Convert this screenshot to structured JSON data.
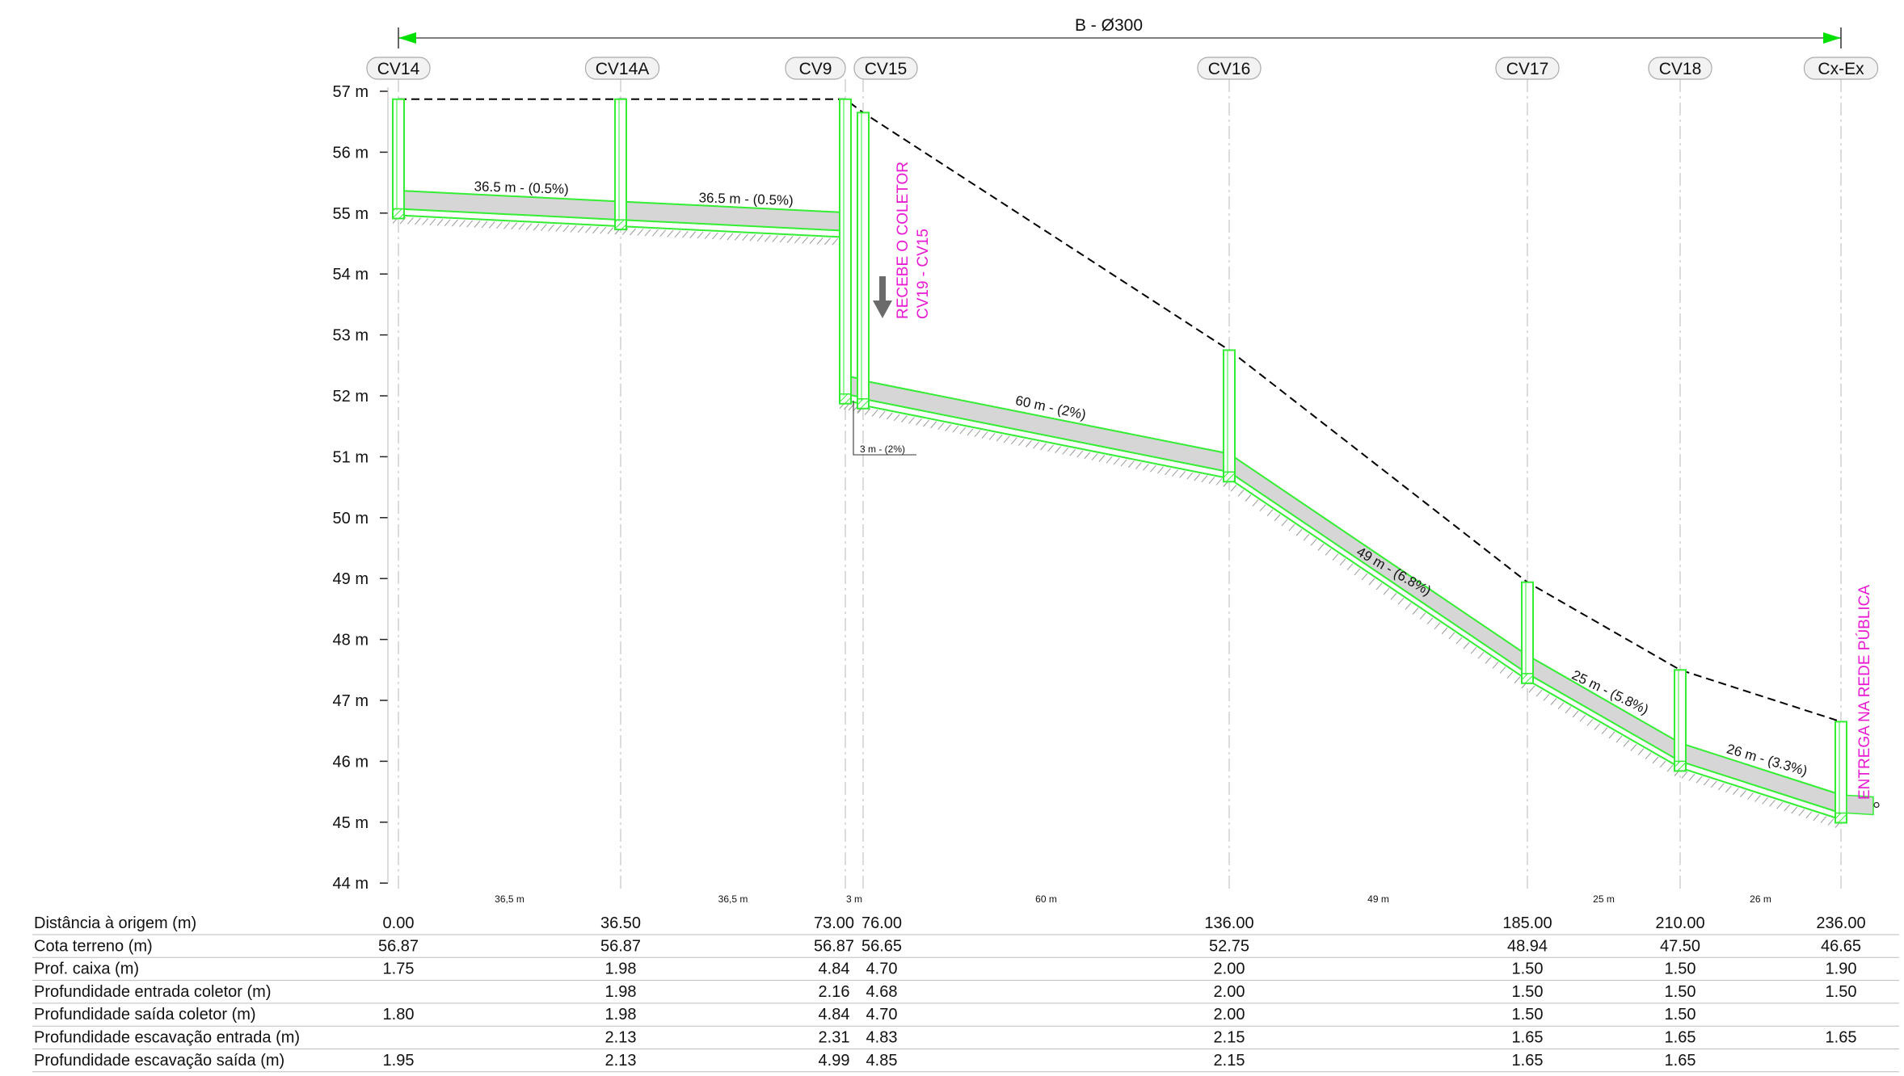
{
  "header": {
    "title": "B - Ø300"
  },
  "colors": {
    "pipe": "#33ee33",
    "fill": "#d6d6d6",
    "terrain": "#000000",
    "annotation": "#e81ad2",
    "dim_arrow": "#00e000"
  },
  "y_axis": {
    "labels": [
      "57 m",
      "56 m",
      "55 m",
      "54 m",
      "53 m",
      "52 m",
      "51 m",
      "50 m",
      "49 m",
      "48 m",
      "47 m",
      "46 m",
      "45 m",
      "44 m"
    ]
  },
  "chart_data": {
    "type": "line",
    "stations": [
      {
        "id": "CV14",
        "label": "CV14",
        "distance": 0,
        "distance_label": "0.00",
        "terrain": 56.87,
        "terrain_label": "56.87",
        "box_depth": "1.75",
        "in_collector": "",
        "out_collector": "1.80",
        "excav_in": "",
        "excav_out": "1.95"
      },
      {
        "id": "CV14A",
        "label": "CV14A",
        "distance": 36.5,
        "distance_label": "36.50",
        "terrain": 56.87,
        "terrain_label": "56.87",
        "box_depth": "1.98",
        "in_collector": "1.98",
        "out_collector": "1.98",
        "excav_in": "2.13",
        "excav_out": "2.13"
      },
      {
        "id": "CV9",
        "label": "CV9",
        "distance": 73,
        "distance_label": "73.00",
        "terrain": 56.87,
        "terrain_label": "56.87",
        "box_depth": "4.84",
        "in_collector": "2.16",
        "out_collector": "4.84",
        "excav_in": "2.31",
        "excav_out": "4.99"
      },
      {
        "id": "CV15",
        "label": "CV15",
        "distance": 76,
        "distance_label": "76.00",
        "terrain": 56.65,
        "terrain_label": "56.65",
        "box_depth": "4.70",
        "in_collector": "4.68",
        "out_collector": "4.70",
        "excav_in": "4.83",
        "excav_out": "4.85"
      },
      {
        "id": "CV16",
        "label": "CV16",
        "distance": 136,
        "distance_label": "136.00",
        "terrain": 52.75,
        "terrain_label": "52.75",
        "box_depth": "2.00",
        "in_collector": "2.00",
        "out_collector": "2.00",
        "excav_in": "2.15",
        "excav_out": "2.15"
      },
      {
        "id": "CV17",
        "label": "CV17",
        "distance": 185,
        "distance_label": "185.00",
        "terrain": 48.94,
        "terrain_label": "48.94",
        "box_depth": "1.50",
        "in_collector": "1.50",
        "out_collector": "1.50",
        "excav_in": "1.65",
        "excav_out": "1.65"
      },
      {
        "id": "CV18",
        "label": "CV18",
        "distance": 210,
        "distance_label": "210.00",
        "terrain": 47.5,
        "terrain_label": "47.50",
        "box_depth": "1.50",
        "in_collector": "1.50",
        "out_collector": "1.50",
        "excav_in": "1.65",
        "excav_out": "1.65"
      },
      {
        "id": "CxEx",
        "label": "Cx-Ex",
        "distance": 236,
        "distance_label": "236.00",
        "terrain": 46.65,
        "terrain_label": "46.65",
        "box_depth": "1.90",
        "in_collector": "1.50",
        "out_collector": "",
        "excav_in": "1.65",
        "excav_out": ""
      }
    ],
    "segments": [
      {
        "from": "CV14",
        "to": "CV14A",
        "label": "36.5 m - (0.5%)",
        "span_label": "36,5 m"
      },
      {
        "from": "CV14A",
        "to": "CV9",
        "label": "36.5 m - (0.5%)",
        "span_label": "36,5 m"
      },
      {
        "from": "CV9",
        "to": "CV15",
        "label": "3 m - (2%)",
        "span_label": "3 m"
      },
      {
        "from": "CV15",
        "to": "CV16",
        "label": "60 m - (2%)",
        "span_label": "60 m"
      },
      {
        "from": "CV16",
        "to": "CV17",
        "label": "49 m - (6.8%)",
        "span_label": "49 m"
      },
      {
        "from": "CV17",
        "to": "CV18",
        "label": "25 m - (5.8%)",
        "span_label": "25 m"
      },
      {
        "from": "CV18",
        "to": "CxEx",
        "label": "26 m - (3.3%)",
        "span_label": "26 m"
      }
    ],
    "ylim": [
      44,
      57
    ]
  },
  "annotations": {
    "receive_line1": "RECEBE O COLETOR",
    "receive_line2": "CV19 - CV15",
    "deliver": "ENTREGA NA REDE PÚBLICA"
  },
  "table": {
    "rows": [
      {
        "name": "Distância à origem (m)",
        "key": "distance_label"
      },
      {
        "name": "Cota terreno (m)",
        "key": "terrain_label"
      },
      {
        "name": "Prof. caixa (m)",
        "key": "box_depth"
      },
      {
        "name": "Profundidade entrada coletor (m)",
        "key": "in_collector"
      },
      {
        "name": "Profundidade saída coletor (m)",
        "key": "out_collector"
      },
      {
        "name": "Profundidade escavação entrada (m)",
        "key": "excav_in"
      },
      {
        "name": "Profundidade escavação saída (m)",
        "key": "excav_out"
      }
    ]
  }
}
